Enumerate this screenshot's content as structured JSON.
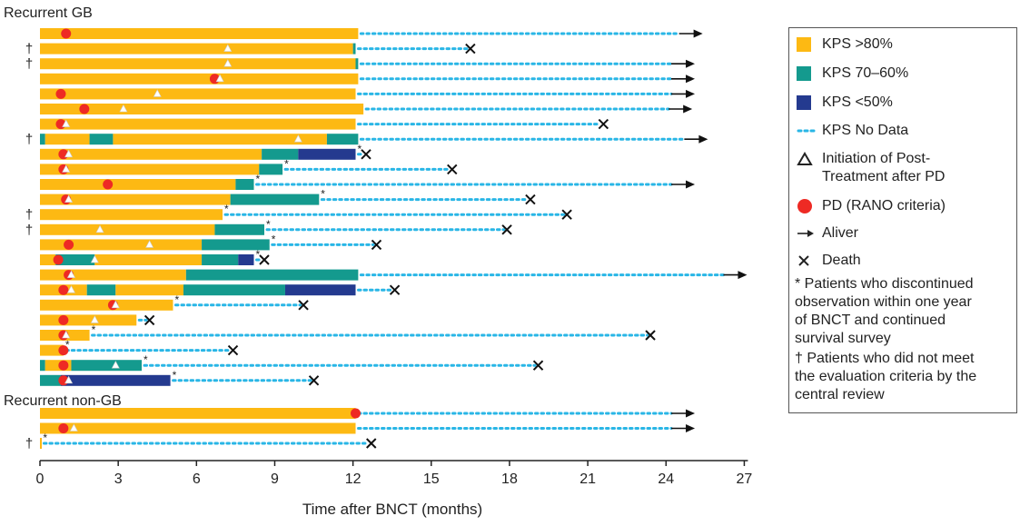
{
  "colors": {
    "kps80": "#FDB913",
    "kps7060": "#149A8E",
    "kps50": "#243A8F",
    "nodata": "#29B6E6",
    "pd": "#EE2A24",
    "tick": "#222222"
  },
  "chart_data": {
    "type": "swimmer",
    "xlabel": "Time after BNCT (months)",
    "xlim": [
      0,
      27
    ],
    "xticks": [
      0,
      3,
      6,
      9,
      12,
      15,
      18,
      21,
      24,
      27
    ],
    "groups": [
      {
        "label": "Recurrent GB",
        "patients": [
          {
            "dagger": false,
            "star": false,
            "segments": [
              {
                "kps": ">80",
                "start": 0,
                "end": 12.2
              }
            ],
            "nodata_end": 24.5,
            "outcome": "alive",
            "pd": 1.0,
            "post": null
          },
          {
            "dagger": true,
            "star": false,
            "segments": [
              {
                "kps": ">80",
                "start": 0,
                "end": 12.0
              },
              {
                "kps": "70-60",
                "start": 12.0,
                "end": 12.1
              }
            ],
            "nodata_end": 16.5,
            "outcome": "death",
            "pd": null,
            "post": 7.2
          },
          {
            "dagger": true,
            "star": false,
            "segments": [
              {
                "kps": ">80",
                "start": 0,
                "end": 12.1
              },
              {
                "kps": "70-60",
                "start": 12.1,
                "end": 12.2
              }
            ],
            "nodata_end": 24.2,
            "outcome": "alive",
            "pd": null,
            "post": 7.2
          },
          {
            "dagger": false,
            "star": false,
            "segments": [
              {
                "kps": ">80",
                "start": 0,
                "end": 12.2
              }
            ],
            "nodata_end": 24.2,
            "outcome": "alive",
            "pd": 6.7,
            "post": 6.9
          },
          {
            "dagger": false,
            "star": false,
            "segments": [
              {
                "kps": ">80",
                "start": 0,
                "end": 12.1
              }
            ],
            "nodata_end": 24.2,
            "outcome": "alive",
            "pd": 0.8,
            "post": 4.5
          },
          {
            "dagger": false,
            "star": false,
            "segments": [
              {
                "kps": ">80",
                "start": 0,
                "end": 12.4
              }
            ],
            "nodata_end": 24.1,
            "outcome": "alive",
            "pd": 1.7,
            "post": 3.2
          },
          {
            "dagger": false,
            "star": false,
            "segments": [
              {
                "kps": ">80",
                "start": 0,
                "end": 12.1
              }
            ],
            "nodata_end": 21.6,
            "outcome": "death",
            "pd": 0.8,
            "post": 1.0
          },
          {
            "dagger": true,
            "star": false,
            "segments": [
              {
                "kps": "70-60",
                "start": 0,
                "end": 0.2
              },
              {
                "kps": ">80",
                "start": 0.2,
                "end": 1.9
              },
              {
                "kps": "70-60",
                "start": 1.9,
                "end": 2.8
              },
              {
                "kps": ">80",
                "start": 2.8,
                "end": 11.0
              },
              {
                "kps": "70-60",
                "start": 11.0,
                "end": 12.2
              }
            ],
            "nodata_end": 24.7,
            "outcome": "alive",
            "pd": null,
            "post": 9.9
          },
          {
            "dagger": false,
            "star": true,
            "segments": [
              {
                "kps": ">80",
                "start": 0,
                "end": 8.5
              },
              {
                "kps": "70-60",
                "start": 8.5,
                "end": 9.9
              },
              {
                "kps": "<50",
                "start": 9.9,
                "end": 12.1
              }
            ],
            "nodata_end": 12.5,
            "outcome": "death",
            "pd": 0.9,
            "post": 1.1
          },
          {
            "dagger": false,
            "star": true,
            "segments": [
              {
                "kps": ">80",
                "start": 0,
                "end": 8.4
              },
              {
                "kps": "70-60",
                "start": 8.4,
                "end": 9.3
              }
            ],
            "nodata_end": 15.8,
            "outcome": "death",
            "pd": 0.9,
            "post": 1.0
          },
          {
            "dagger": false,
            "star": true,
            "segments": [
              {
                "kps": ">80",
                "start": 0,
                "end": 7.5
              },
              {
                "kps": "70-60",
                "start": 7.5,
                "end": 8.2
              }
            ],
            "nodata_end": 24.2,
            "outcome": "alive",
            "pd": 2.6,
            "post": null
          },
          {
            "dagger": false,
            "star": true,
            "segments": [
              {
                "kps": ">80",
                "start": 0,
                "end": 7.3
              },
              {
                "kps": "70-60",
                "start": 7.3,
                "end": 10.7
              }
            ],
            "nodata_end": 18.8,
            "outcome": "death",
            "pd": 1.0,
            "post": 1.1
          },
          {
            "dagger": true,
            "star": true,
            "segments": [
              {
                "kps": ">80",
                "start": 0,
                "end": 7.0
              }
            ],
            "nodata_end": 20.2,
            "outcome": "death",
            "pd": null,
            "post": null
          },
          {
            "dagger": true,
            "star": true,
            "segments": [
              {
                "kps": ">80",
                "start": 0,
                "end": 6.7
              },
              {
                "kps": "70-60",
                "start": 6.7,
                "end": 8.6
              }
            ],
            "nodata_end": 17.9,
            "outcome": "death",
            "pd": null,
            "post": 2.3
          },
          {
            "dagger": false,
            "star": true,
            "segments": [
              {
                "kps": ">80",
                "start": 0,
                "end": 6.2
              },
              {
                "kps": "70-60",
                "start": 6.2,
                "end": 8.8
              }
            ],
            "nodata_end": 12.9,
            "outcome": "death",
            "pd": 1.1,
            "post": 4.2
          },
          {
            "dagger": false,
            "star": true,
            "segments": [
              {
                "kps": ">80",
                "start": 0,
                "end": 0.6
              },
              {
                "kps": "70-60",
                "start": 0.6,
                "end": 2.1
              },
              {
                "kps": ">80",
                "start": 2.1,
                "end": 6.2
              },
              {
                "kps": "70-60",
                "start": 6.2,
                "end": 7.6
              },
              {
                "kps": "<50",
                "start": 7.6,
                "end": 8.2
              }
            ],
            "nodata_end": 8.6,
            "outcome": "death",
            "pd": 0.7,
            "post": 2.1
          },
          {
            "dagger": false,
            "star": false,
            "segments": [
              {
                "kps": ">80",
                "start": 0,
                "end": 5.6
              },
              {
                "kps": "70-60",
                "start": 5.6,
                "end": 12.2
              }
            ],
            "nodata_end": 26.2,
            "outcome": "alive",
            "pd": 1.1,
            "post": 1.2
          },
          {
            "dagger": false,
            "star": false,
            "segments": [
              {
                "kps": ">80",
                "start": 0,
                "end": 1.8
              },
              {
                "kps": "70-60",
                "start": 1.8,
                "end": 2.9
              },
              {
                "kps": ">80",
                "start": 2.9,
                "end": 5.5
              },
              {
                "kps": "70-60",
                "start": 5.5,
                "end": 9.4
              },
              {
                "kps": "<50",
                "start": 9.4,
                "end": 12.1
              }
            ],
            "nodata_end": 13.6,
            "outcome": "death",
            "pd": 0.9,
            "post": 1.2
          },
          {
            "dagger": false,
            "star": true,
            "segments": [
              {
                "kps": ">80",
                "start": 0,
                "end": 5.1
              }
            ],
            "nodata_end": 10.1,
            "outcome": "death",
            "pd": 2.8,
            "post": 2.9
          },
          {
            "dagger": false,
            "star": false,
            "segments": [
              {
                "kps": ">80",
                "start": 0,
                "end": 3.7
              }
            ],
            "nodata_end": 4.2,
            "outcome": "death",
            "pd": 0.9,
            "post": 2.1
          },
          {
            "dagger": false,
            "star": true,
            "segments": [
              {
                "kps": ">80",
                "start": 0,
                "end": 1.9
              }
            ],
            "nodata_end": 23.4,
            "outcome": "death",
            "pd": 0.9,
            "post": 1.0
          },
          {
            "dagger": false,
            "star": true,
            "segments": [
              {
                "kps": ">80",
                "start": 0,
                "end": 0.9
              }
            ],
            "nodata_end": 7.4,
            "outcome": "death",
            "pd": 0.9,
            "post": null
          },
          {
            "dagger": false,
            "star": true,
            "segments": [
              {
                "kps": "70-60",
                "start": 0,
                "end": 0.2
              },
              {
                "kps": ">80",
                "start": 0.2,
                "end": 1.2
              },
              {
                "kps": "70-60",
                "start": 1.2,
                "end": 3.9
              }
            ],
            "nodata_end": 19.1,
            "outcome": "death",
            "pd": 0.9,
            "post": 2.9
          },
          {
            "dagger": false,
            "star": true,
            "segments": [
              {
                "kps": "70-60",
                "start": 0,
                "end": 0.8
              },
              {
                "kps": "<50",
                "start": 0.8,
                "end": 5.0
              }
            ],
            "nodata_end": 10.5,
            "outcome": "death",
            "pd": 0.9,
            "post": 1.1
          }
        ]
      },
      {
        "label": "Recurrent non-GB",
        "patients": [
          {
            "dagger": false,
            "star": false,
            "segments": [
              {
                "kps": ">80",
                "start": 0,
                "end": 12.1
              }
            ],
            "nodata_end": 24.2,
            "outcome": "alive",
            "pd": 12.1,
            "post": null
          },
          {
            "dagger": false,
            "star": false,
            "segments": [
              {
                "kps": ">80",
                "start": 0,
                "end": 12.1
              }
            ],
            "nodata_end": 24.2,
            "outcome": "alive",
            "pd": 0.9,
            "post": 1.3
          },
          {
            "dagger": true,
            "star": true,
            "segments": [
              {
                "kps": ">80",
                "start": 0,
                "end": 0.05
              }
            ],
            "nodata_end": 12.7,
            "outcome": "death",
            "pd": null,
            "post": null
          }
        ]
      }
    ]
  },
  "legend": {
    "kps80": "KPS >80%",
    "kps7060": "KPS 70–60%",
    "kps50": "KPS <50%",
    "nodata": "KPS No Data",
    "post": "Initiation of Post-\nTreatment after PD",
    "pd": "PD (RANO criteria)",
    "alive": "Aliver",
    "death": "Death",
    "note_star": "* Patients who discontinued\nobservation within one year\nof BNCT and continued\nsurvival survey",
    "note_dagger": "† Patients who did not meet\nthe evaluation criteria by the\ncentral review"
  }
}
